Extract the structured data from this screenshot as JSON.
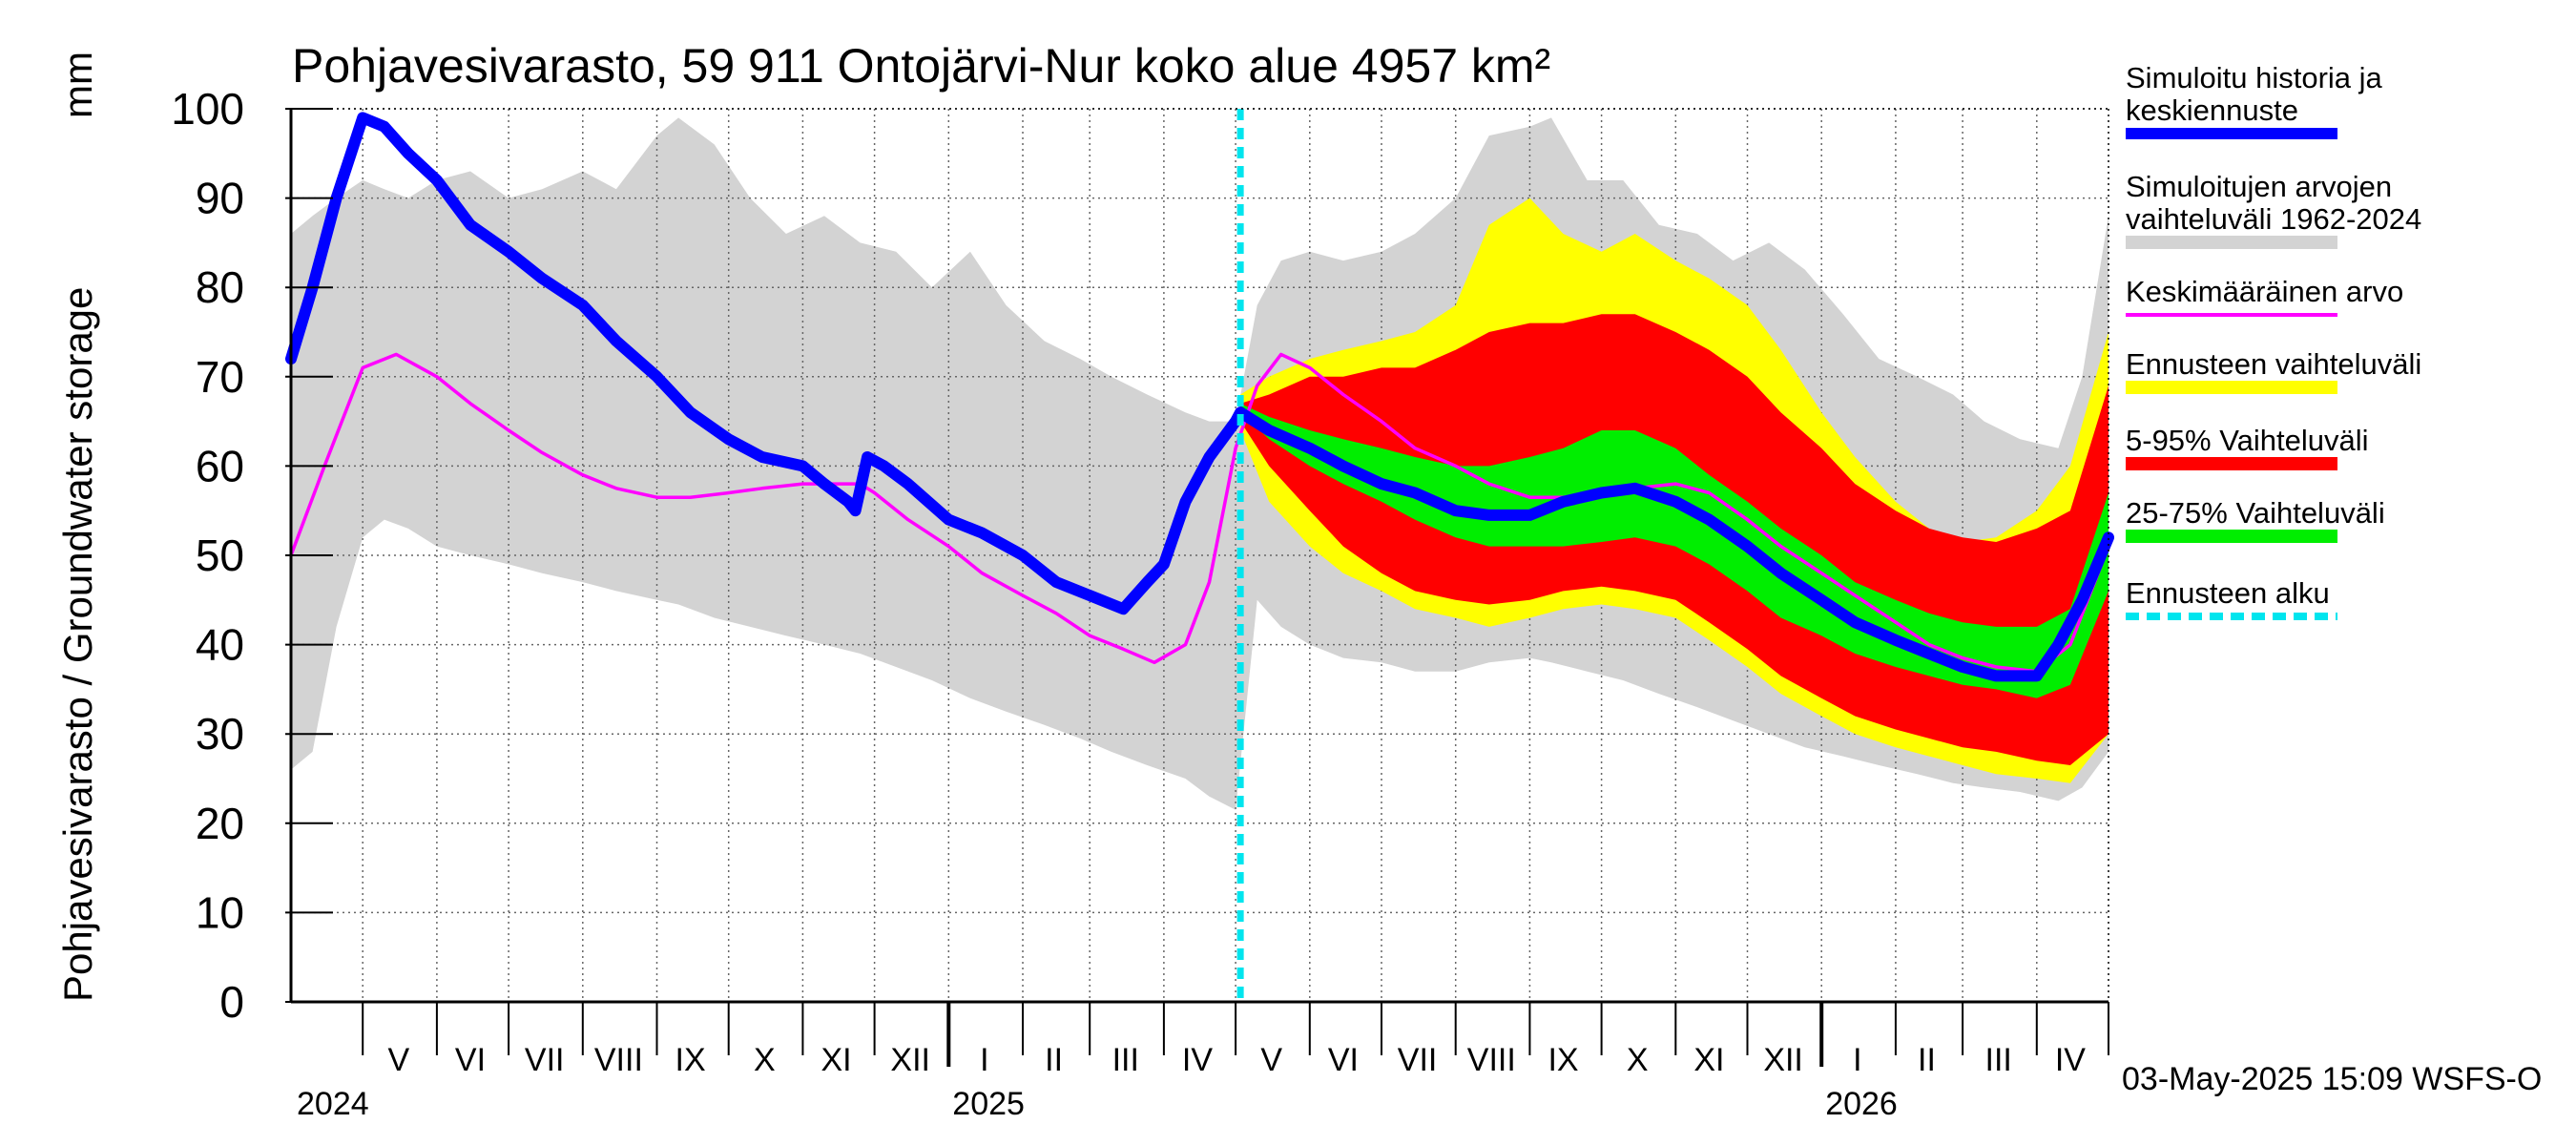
{
  "chart_data": {
    "type": "area",
    "title": "Pohjavesivarasto, 59 911 Ontojärvi-Nur koko alue 4957 km²",
    "ylabel": "Pohjavesivarasto / Groundwater storage",
    "yunit": "mm",
    "ylim": [
      0,
      100
    ],
    "yticks": [
      0,
      10,
      20,
      30,
      40,
      50,
      60,
      70,
      80,
      90,
      100
    ],
    "xlim": [
      "2024-04-01",
      "2026-05-01"
    ],
    "month_labels": [
      {
        "label": "V",
        "date": "2024-05-16"
      },
      {
        "label": "VI",
        "date": "2024-06-15"
      },
      {
        "label": "VII",
        "date": "2024-07-16"
      },
      {
        "label": "VIII",
        "date": "2024-08-16"
      },
      {
        "label": "IX",
        "date": "2024-09-15"
      },
      {
        "label": "X",
        "date": "2024-10-16"
      },
      {
        "label": "XI",
        "date": "2024-11-15"
      },
      {
        "label": "XII",
        "date": "2024-12-16"
      },
      {
        "label": "I",
        "date": "2025-01-16"
      },
      {
        "label": "II",
        "date": "2025-02-14"
      },
      {
        "label": "III",
        "date": "2025-03-16"
      },
      {
        "label": "IV",
        "date": "2025-04-15"
      },
      {
        "label": "V",
        "date": "2025-05-16"
      },
      {
        "label": "VI",
        "date": "2025-06-15"
      },
      {
        "label": "VII",
        "date": "2025-07-16"
      },
      {
        "label": "VIII",
        "date": "2025-08-16"
      },
      {
        "label": "IX",
        "date": "2025-09-15"
      },
      {
        "label": "X",
        "date": "2025-10-16"
      },
      {
        "label": "XI",
        "date": "2025-11-15"
      },
      {
        "label": "XII",
        "date": "2025-12-16"
      },
      {
        "label": "I",
        "date": "2026-01-16"
      },
      {
        "label": "II",
        "date": "2026-02-14"
      },
      {
        "label": "III",
        "date": "2026-03-16"
      },
      {
        "label": "IV",
        "date": "2026-04-15"
      }
    ],
    "year_labels": [
      {
        "label": "2024",
        "date": "2024-04-01"
      },
      {
        "label": "2025",
        "date": "2025-01-01"
      },
      {
        "label": "2026",
        "date": "2026-01-01"
      }
    ],
    "forecast_start": "2025-05-03",
    "grid": true,
    "legend_position": "right",
    "legend": [
      {
        "label": "Simuloitu historia ja keskiennuste",
        "color": "#0000ff",
        "style": "thick-line"
      },
      {
        "label": "Simuloitujen arvojen vaihteluväli 1962-2024",
        "color": "#d3d3d3",
        "style": "band"
      },
      {
        "label": "Keskimääräinen arvo",
        "color": "#ff00ff",
        "style": "line"
      },
      {
        "label": "Ennusteen vaihteluväli",
        "color": "#ffff00",
        "style": "band"
      },
      {
        "label": "5-95% Vaihteluväli",
        "color": "#ff0000",
        "style": "band"
      },
      {
        "label": "25-75% Vaihteluväli",
        "color": "#00ee00",
        "style": "band"
      },
      {
        "label": "Ennusteen alku",
        "color": "#00e5ee",
        "style": "dashed"
      }
    ],
    "footer": "03-May-2025 15:09 WSFS-O",
    "series": {
      "historical_range": {
        "x": [
          "2024-04-01",
          "2024-04-10",
          "2024-04-20",
          "2024-05-01",
          "2024-05-10",
          "2024-05-20",
          "2024-06-01",
          "2024-06-15",
          "2024-07-01",
          "2024-07-15",
          "2024-08-01",
          "2024-08-15",
          "2024-09-01",
          "2024-09-10",
          "2024-09-25",
          "2024-10-10",
          "2024-10-25",
          "2024-11-10",
          "2024-11-25",
          "2024-12-10",
          "2024-12-25",
          "2025-01-10",
          "2025-01-25",
          "2025-02-10",
          "2025-02-25",
          "2025-03-10",
          "2025-03-25",
          "2025-04-10",
          "2025-04-20",
          "2025-05-01",
          "2025-05-10",
          "2025-05-20",
          "2025-06-01",
          "2025-06-15",
          "2025-07-01",
          "2025-07-15",
          "2025-08-01",
          "2025-08-15",
          "2025-09-01",
          "2025-09-10",
          "2025-09-25",
          "2025-10-10",
          "2025-10-25",
          "2025-11-10",
          "2025-11-25",
          "2025-12-10",
          "2025-12-25",
          "2026-01-10",
          "2026-01-25",
          "2026-02-10",
          "2026-02-25",
          "2026-03-10",
          "2026-03-25",
          "2026-04-10",
          "2026-04-20",
          "2026-05-01"
        ],
        "low": [
          26,
          28,
          42,
          52,
          54,
          53,
          51,
          50,
          49,
          48,
          47,
          46,
          45,
          44.5,
          43,
          42,
          41,
          40,
          39,
          37.5,
          36,
          34,
          32.5,
          31,
          29.5,
          28,
          26.5,
          25,
          23,
          21.5,
          45,
          42,
          40,
          38.5,
          38,
          37,
          37,
          38,
          38.5,
          38,
          37,
          36,
          34.5,
          33,
          31.5,
          30,
          28.5,
          27.5,
          26.5,
          25.5,
          24.5,
          24,
          23.5,
          22.5,
          24,
          28
        ],
        "high": [
          86,
          88,
          90,
          92,
          91,
          90,
          92,
          93,
          90,
          91,
          93,
          91,
          97,
          99,
          96,
          90,
          86,
          88,
          85,
          84,
          80,
          84,
          78,
          74,
          72,
          70,
          68,
          66,
          65,
          65,
          78,
          83,
          84,
          83,
          84,
          86,
          90,
          97,
          98,
          99,
          92,
          92,
          87,
          86,
          83,
          85,
          82,
          77,
          72,
          70,
          68,
          65,
          63,
          62,
          70,
          88
        ]
      },
      "forecast_range": {
        "x": [
          "2025-05-03",
          "2025-05-15",
          "2025-06-01",
          "2025-06-15",
          "2025-07-01",
          "2025-07-15",
          "2025-08-01",
          "2025-08-15",
          "2025-09-01",
          "2025-09-15",
          "2025-10-01",
          "2025-10-15",
          "2025-11-01",
          "2025-11-15",
          "2025-12-01",
          "2025-12-15",
          "2026-01-01",
          "2026-01-15",
          "2026-02-01",
          "2026-02-15",
          "2026-03-01",
          "2026-03-15",
          "2026-04-01",
          "2026-04-15",
          "2026-05-01"
        ],
        "low": [
          64,
          56,
          51,
          48,
          46,
          44,
          43,
          42,
          43,
          44,
          44.5,
          44,
          43,
          40.5,
          37.5,
          34.5,
          32,
          30,
          28.5,
          27.5,
          26.5,
          25.5,
          25,
          24.5,
          30
        ],
        "high": [
          68,
          70,
          72,
          73,
          74,
          75,
          78,
          87,
          90,
          86,
          84,
          86,
          83,
          81,
          78,
          73,
          66,
          61,
          56,
          53,
          51.5,
          52,
          55,
          60,
          75
        ]
      },
      "p5_95": {
        "x": [
          "2025-05-03",
          "2025-05-15",
          "2025-06-01",
          "2025-06-15",
          "2025-07-01",
          "2025-07-15",
          "2025-08-01",
          "2025-08-15",
          "2025-09-01",
          "2025-09-15",
          "2025-10-01",
          "2025-10-15",
          "2025-11-01",
          "2025-11-15",
          "2025-12-01",
          "2025-12-15",
          "2026-01-01",
          "2026-01-15",
          "2026-02-01",
          "2026-02-15",
          "2026-03-01",
          "2026-03-15",
          "2026-04-01",
          "2026-04-15",
          "2026-05-01"
        ],
        "low": [
          65,
          60,
          55,
          51,
          48,
          46,
          45,
          44.5,
          45,
          46,
          46.5,
          46,
          45,
          42.5,
          39.5,
          36.5,
          34,
          32,
          30.5,
          29.5,
          28.5,
          28,
          27,
          26.5,
          30
        ],
        "high": [
          67,
          68,
          70,
          70,
          71,
          71,
          73,
          75,
          76,
          76,
          77,
          77,
          75,
          73,
          70,
          66,
          62,
          58,
          55,
          53,
          52,
          51.5,
          53,
          55,
          69
        ]
      },
      "p25_75": {
        "x": [
          "2025-05-03",
          "2025-05-15",
          "2025-06-01",
          "2025-06-15",
          "2025-07-01",
          "2025-07-15",
          "2025-08-01",
          "2025-08-15",
          "2025-09-01",
          "2025-09-15",
          "2025-10-01",
          "2025-10-15",
          "2025-11-01",
          "2025-11-15",
          "2025-12-01",
          "2025-12-15",
          "2026-01-01",
          "2026-01-15",
          "2026-02-01",
          "2026-02-15",
          "2026-03-01",
          "2026-03-15",
          "2026-04-01",
          "2026-04-15",
          "2026-05-01"
        ],
        "low": [
          66,
          63,
          60,
          58,
          56,
          54,
          52,
          51,
          51,
          51,
          51.5,
          52,
          51,
          49,
          46,
          43,
          41,
          39,
          37.5,
          36.5,
          35.5,
          35,
          34,
          35.5,
          46
        ],
        "high": [
          67,
          65.5,
          64,
          63,
          62,
          61,
          60,
          60,
          61,
          62,
          64,
          64,
          62,
          59,
          56,
          53,
          50,
          47,
          45,
          43.5,
          42.5,
          42,
          42,
          44,
          57
        ]
      },
      "simulated_median": {
        "x": [
          "2024-04-01",
          "2024-04-10",
          "2024-04-20",
          "2024-05-01",
          "2024-05-10",
          "2024-05-20",
          "2024-06-01",
          "2024-06-15",
          "2024-07-01",
          "2024-07-15",
          "2024-08-01",
          "2024-08-15",
          "2024-09-01",
          "2024-09-15",
          "2024-10-01",
          "2024-10-15",
          "2024-11-01",
          "2024-11-10",
          "2024-11-20",
          "2024-11-23",
          "2024-11-28",
          "2024-12-05",
          "2024-12-15",
          "2025-01-01",
          "2025-01-15",
          "2025-02-01",
          "2025-02-15",
          "2025-03-01",
          "2025-03-15",
          "2025-03-25",
          "2025-04-01",
          "2025-04-10",
          "2025-04-20",
          "2025-05-01",
          "2025-05-03",
          "2025-05-15",
          "2025-06-01",
          "2025-06-15",
          "2025-07-01",
          "2025-07-15",
          "2025-08-01",
          "2025-08-15",
          "2025-09-01",
          "2025-09-15",
          "2025-10-01",
          "2025-10-15",
          "2025-11-01",
          "2025-11-15",
          "2025-12-01",
          "2025-12-15",
          "2026-01-01",
          "2026-01-15",
          "2026-02-01",
          "2026-02-15",
          "2026-03-01",
          "2026-03-15",
          "2026-04-01",
          "2026-04-10",
          "2026-04-20",
          "2026-05-01"
        ],
        "y": [
          72,
          80,
          90,
          99,
          98,
          95,
          92,
          87,
          84,
          81,
          78,
          74,
          70,
          66,
          63,
          61,
          60,
          58,
          56,
          55,
          61,
          60,
          58,
          54,
          52.5,
          50,
          47,
          45.5,
          44,
          47,
          49,
          56,
          61,
          65,
          66,
          64,
          62,
          60,
          58,
          57,
          55,
          54.5,
          54.5,
          56,
          57,
          57.5,
          56,
          54,
          51,
          48,
          45,
          42.5,
          40.5,
          39,
          37.5,
          36.5,
          36.5,
          40,
          45,
          52
        ]
      },
      "mean": {
        "x": [
          "2024-04-01",
          "2024-04-15",
          "2024-05-01",
          "2024-05-15",
          "2024-06-01",
          "2024-06-15",
          "2024-07-01",
          "2024-07-15",
          "2024-08-01",
          "2024-08-15",
          "2024-09-01",
          "2024-09-15",
          "2024-10-01",
          "2024-10-15",
          "2024-11-01",
          "2024-11-15",
          "2024-11-25",
          "2024-12-01",
          "2024-12-15",
          "2025-01-01",
          "2025-01-15",
          "2025-02-01",
          "2025-02-15",
          "2025-03-01",
          "2025-03-15",
          "2025-03-28",
          "2025-04-10",
          "2025-04-20",
          "2025-05-01",
          "2025-05-10",
          "2025-05-20",
          "2025-06-01",
          "2025-06-15",
          "2025-07-01",
          "2025-07-15",
          "2025-08-01",
          "2025-08-15",
          "2025-09-01",
          "2025-09-15",
          "2025-10-01",
          "2025-10-15",
          "2025-11-01",
          "2025-11-15",
          "2025-12-01",
          "2025-12-15",
          "2026-01-01",
          "2026-01-15",
          "2026-02-01",
          "2026-02-15",
          "2026-03-01",
          "2026-03-15",
          "2026-04-01",
          "2026-04-15",
          "2026-05-01"
        ],
        "y": [
          50,
          60,
          71,
          72.5,
          70,
          67,
          64,
          61.5,
          59,
          57.5,
          56.5,
          56.5,
          57,
          57.5,
          58,
          58,
          58,
          57,
          54,
          51,
          48,
          45.5,
          43.5,
          41,
          39.5,
          38,
          40,
          47,
          62,
          69,
          72.5,
          71,
          68,
          65,
          62,
          60,
          58,
          56.5,
          56.5,
          57,
          57.5,
          58,
          57,
          54,
          51,
          48,
          45.5,
          42.5,
          40,
          38.5,
          37.5,
          37,
          40,
          51
        ]
      }
    }
  }
}
